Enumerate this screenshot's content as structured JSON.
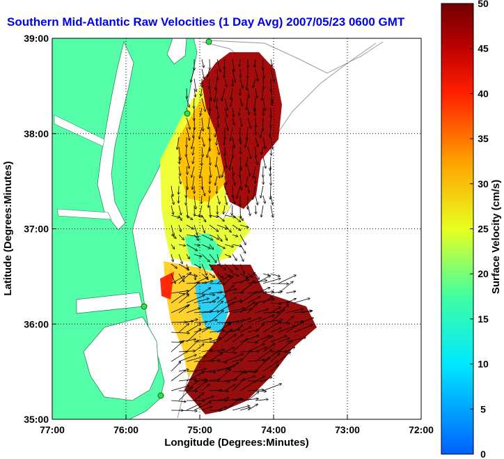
{
  "chart_data": {
    "type": "vector-field-map",
    "title": "Southern Mid-Atlantic Raw Velocities (1 Day Avg) 2007/05/23 0600 GMT",
    "xlabel": "Longitude (Degrees:Minutes)",
    "ylabel": "Latitude (Degrees:Minutes)",
    "xlim": [
      -77,
      -72
    ],
    "ylim": [
      35,
      39
    ],
    "x_ticks": [
      "77:00",
      "76:00",
      "75:00",
      "74:00",
      "73:00",
      "72:00"
    ],
    "y_ticks": [
      "35:00",
      "36:00",
      "37:00",
      "38:00",
      "39:00"
    ],
    "grid": true,
    "colorbar": {
      "label": "Surface Velocity (cm/s)",
      "range": [
        0,
        50
      ],
      "ticks": [
        "0",
        "5",
        "10",
        "15",
        "20",
        "25",
        "30",
        "35",
        "40",
        "45",
        "50"
      ],
      "colors": [
        "#0080ff",
        "#00e0ff",
        "#40ffb0",
        "#e8ff20",
        "#ffb000",
        "#ff2000",
        "#c00000",
        "#800000"
      ]
    },
    "colors": {
      "land": "#55ffaa",
      "axis_frame": "#000000"
    }
  }
}
